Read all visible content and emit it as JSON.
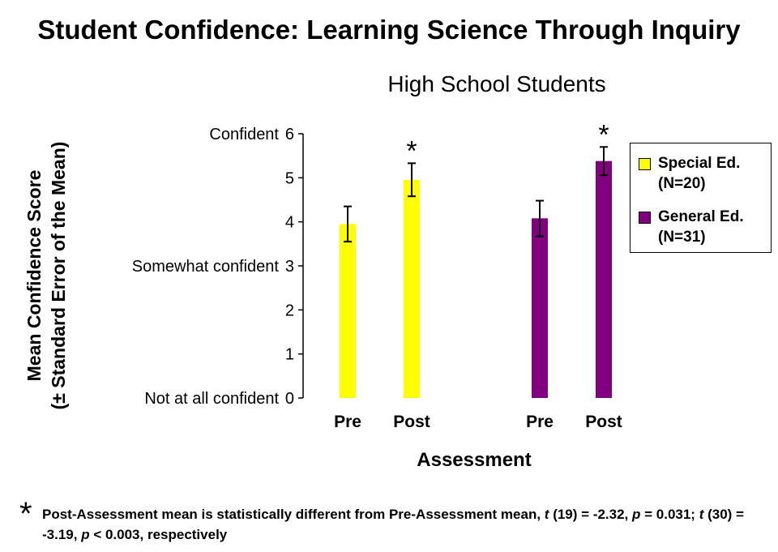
{
  "chart_data": {
    "type": "bar",
    "title": "Student Confidence: Learning Science Through Inquiry",
    "subtitle": "High School Students",
    "ylabel_lines": [
      "Mean Confidence Score",
      "(± Standard Error of the Mean)"
    ],
    "xlabel": "Assessment",
    "ylim": [
      0,
      6
    ],
    "yticks": [
      0,
      1,
      2,
      3,
      4,
      5,
      6
    ],
    "ytick_text_labels": [
      {
        "value": 6,
        "label": "Confident"
      },
      {
        "value": 3,
        "label": "Somewhat confident"
      },
      {
        "value": 0,
        "label": "Not at all confident"
      }
    ],
    "groups": [
      {
        "series": "Special Ed.",
        "color": "#ffff00",
        "bars": [
          {
            "label": "Pre",
            "value": 3.95,
            "err_low": 3.55,
            "err_high": 4.35,
            "marker": ""
          },
          {
            "label": "Post",
            "value": 4.95,
            "err_low": 4.58,
            "err_high": 5.33,
            "marker": "*"
          }
        ]
      },
      {
        "series": "General Ed.",
        "color": "#800080",
        "bars": [
          {
            "label": "Pre",
            "value": 4.08,
            "err_low": 3.67,
            "err_high": 4.48,
            "marker": ""
          },
          {
            "label": "Post",
            "value": 5.38,
            "err_low": 5.06,
            "err_high": 5.7,
            "marker": "*"
          }
        ]
      }
    ],
    "legend": {
      "position": "right",
      "items": [
        {
          "line1": "Special Ed.",
          "line2": "(N=20)",
          "color": "#ffff00"
        },
        {
          "line1": "General Ed.",
          "line2": "(N=31)",
          "color": "#800080"
        }
      ]
    },
    "grid": false
  },
  "footnote": {
    "marker": "*",
    "t1": "Post-Assessment mean is statistically different from Pre-Assessment mean, ",
    "t2": "t",
    "t3": " (19) = -2.32, ",
    "t4": "p",
    "t5": " = 0.031;  ",
    "t6": "t",
    "t7": " (30) = -3.19, ",
    "t8": "p",
    "t9": " < 0.003, respectively"
  }
}
